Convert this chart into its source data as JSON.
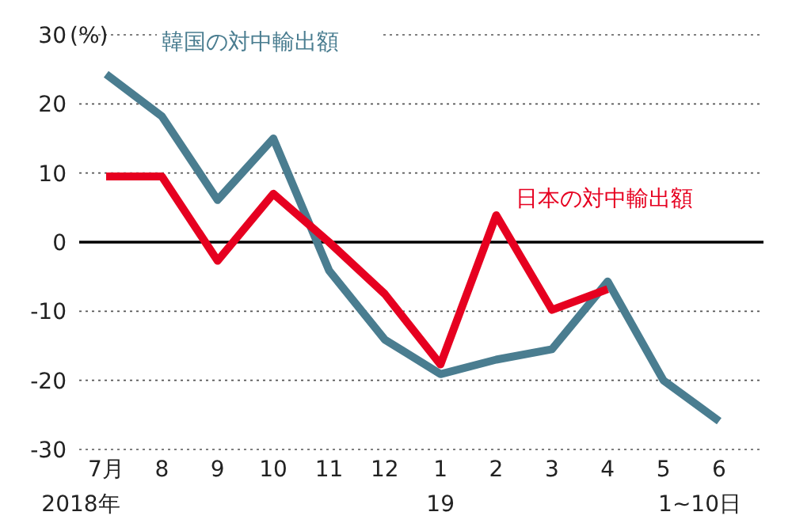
{
  "chart_data": {
    "type": "line",
    "ylabel": "(%)",
    "categories": [
      "7月",
      "8",
      "9",
      "10",
      "11",
      "12",
      "1",
      "2",
      "3",
      "4",
      "5",
      "6"
    ],
    "series": [
      {
        "name": "韓国の対中輸出額",
        "color": "#4a7d90",
        "values": [
          24.3,
          18.2,
          6.1,
          15,
          -4.1,
          -14.1,
          -19.1,
          -17,
          -15.5,
          -5.7,
          -20,
          -25.9
        ]
      },
      {
        "name": "日本の対中輸出額",
        "color": "#e60020",
        "values": [
          9.5,
          9.5,
          -2.7,
          7,
          0,
          -7.5,
          -17.7,
          3.9,
          -9.8,
          -6.8,
          null,
          null
        ]
      }
    ],
    "ylim": [
      -30,
      30
    ],
    "yticks": [
      30,
      20,
      10,
      0,
      -10,
      -20,
      -30
    ],
    "grid": "y",
    "legend": false,
    "ref_lines": [
      {
        "axis": "y",
        "value": 0,
        "color": "#000000"
      }
    ],
    "annotations": [
      "2018年",
      "19",
      "1~10日"
    ]
  }
}
